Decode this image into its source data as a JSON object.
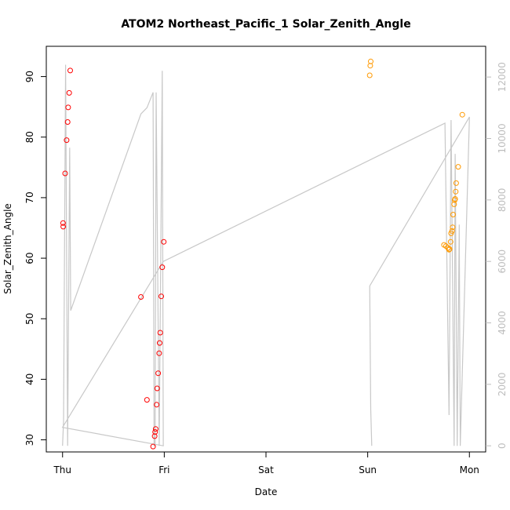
{
  "chart_data": {
    "type": "scatter",
    "title": "ATOM2 Northeast_Pacific_1 Solar_Zenith_Angle",
    "xlabel": "Date",
    "ylabel": "Solar_Zenith_Angle",
    "x_tick_labels": [
      "Thu",
      "Fri",
      "Sat",
      "Sun",
      "Mon"
    ],
    "x_tick_values": [
      0,
      1,
      2,
      3,
      4
    ],
    "xlim": [
      -0.16,
      4.16
    ],
    "ylim": [
      28,
      95
    ],
    "y_ticks": [
      30,
      40,
      50,
      60,
      70,
      80,
      90
    ],
    "y2lim": [
      -200,
      13000
    ],
    "y2_ticks": [
      0,
      2000,
      4000,
      6000,
      8000,
      10000,
      12000
    ],
    "grid": false,
    "series": [
      {
        "color": "#ff0000",
        "points": [
          [
            0.005,
            65.8
          ],
          [
            0.007,
            65.2
          ],
          [
            0.025,
            74.0
          ],
          [
            0.04,
            79.5
          ],
          [
            0.05,
            82.5
          ],
          [
            0.055,
            84.9
          ],
          [
            0.065,
            87.3
          ],
          [
            0.075,
            91.0
          ],
          [
            0.77,
            53.6
          ],
          [
            0.83,
            36.6
          ],
          [
            0.89,
            28.9
          ],
          [
            0.905,
            30.6
          ],
          [
            0.91,
            31.3
          ],
          [
            0.915,
            31.8
          ],
          [
            0.925,
            35.8
          ],
          [
            0.93,
            38.5
          ],
          [
            0.94,
            41.0
          ],
          [
            0.95,
            44.3
          ],
          [
            0.955,
            46.0
          ],
          [
            0.96,
            47.7
          ],
          [
            0.97,
            53.7
          ],
          [
            0.98,
            58.5
          ],
          [
            0.995,
            62.7
          ]
        ]
      },
      {
        "color": "#ff9900",
        "points": [
          [
            3.02,
            90.2
          ],
          [
            3.025,
            91.8
          ],
          [
            3.03,
            92.5
          ],
          [
            3.75,
            62.2
          ],
          [
            3.77,
            62.0
          ],
          [
            3.79,
            61.7
          ],
          [
            3.8,
            61.4
          ],
          [
            3.805,
            61.5
          ],
          [
            3.815,
            62.7
          ],
          [
            3.82,
            64.1
          ],
          [
            3.83,
            64.5
          ],
          [
            3.835,
            65.1
          ],
          [
            3.84,
            67.2
          ],
          [
            3.85,
            68.9
          ],
          [
            3.855,
            69.6
          ],
          [
            3.86,
            69.8
          ],
          [
            3.865,
            71.0
          ],
          [
            3.87,
            72.4
          ],
          [
            3.89,
            75.1
          ],
          [
            3.93,
            83.7
          ]
        ]
      }
    ],
    "secondary_line": {
      "color": "#c8c8c8",
      "points": [
        [
          0.0,
          0
        ],
        [
          0.01,
          800
        ],
        [
          0.03,
          12400
        ],
        [
          0.05,
          0
        ],
        [
          0.07,
          9700
        ],
        [
          0.08,
          4400
        ],
        [
          0.77,
          10800
        ],
        [
          0.83,
          11000
        ],
        [
          0.89,
          11500
        ],
        [
          0.9,
          0
        ],
        [
          0.91,
          0
        ],
        [
          0.92,
          11500
        ],
        [
          0.95,
          0
        ],
        [
          0.98,
          12200
        ],
        [
          0.99,
          0
        ],
        [
          0.0,
          600
        ],
        [
          0.99,
          6000
        ],
        [
          3.76,
          10500
        ],
        [
          3.8,
          1000
        ],
        [
          3.82,
          10600
        ],
        [
          3.85,
          0
        ],
        [
          3.86,
          9500
        ],
        [
          3.88,
          0
        ],
        [
          3.9,
          7200
        ],
        [
          3.91,
          0
        ],
        [
          4.0,
          10700
        ],
        [
          3.02,
          5200
        ],
        [
          3.03,
          1200
        ],
        [
          3.04,
          0
        ]
      ]
    }
  }
}
